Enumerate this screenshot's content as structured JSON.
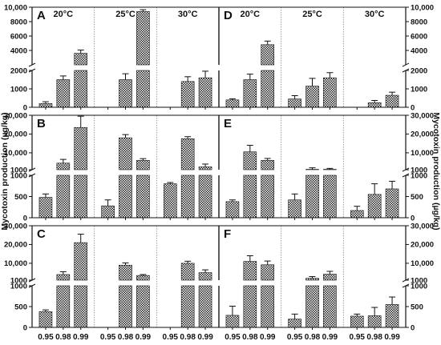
{
  "chart_data": {
    "type": "bar",
    "ylabel_left": "Mycotoxin production (µg/kg)",
    "ylabel_right": "Mycotoxin production (µg/kg)",
    "x_tick_labels": [
      "0.95",
      "0.98",
      "0.99",
      "0.95",
      "0.98",
      "0.99",
      "0.95",
      "0.98",
      "0.99"
    ],
    "temperatures": [
      "20°C",
      "25°C",
      "30°C"
    ],
    "panels": [
      {
        "label": "A",
        "row": 0,
        "col": 0,
        "show_temps": true,
        "lower": {
          "ylim": [
            0,
            2000
          ],
          "ticks": [
            "0",
            "1000",
            "2000"
          ]
        },
        "upper": {
          "ylim": [
            2000,
            10000
          ],
          "ticks": [
            "4000",
            "6000",
            "8000",
            "10,000"
          ]
        },
        "values": [
          200,
          1500,
          3600,
          null,
          1500,
          9400,
          null,
          1400,
          1600
        ],
        "errors": [
          100,
          200,
          450,
          null,
          320,
          250,
          null,
          260,
          360
        ]
      },
      {
        "label": "D",
        "row": 0,
        "col": 1,
        "show_temps": true,
        "lower": {
          "ylim": [
            0,
            2000
          ],
          "ticks": [
            "0",
            "1000",
            "2000"
          ]
        },
        "upper": {
          "ylim": [
            2000,
            10000
          ],
          "ticks": [
            "4000",
            "6000",
            "8000",
            "10,000"
          ]
        },
        "values": [
          400,
          1500,
          4800,
          450,
          1150,
          1600,
          null,
          250,
          650
        ],
        "errors": [
          60,
          300,
          500,
          180,
          420,
          280,
          null,
          120,
          170
        ]
      },
      {
        "label": "B",
        "row": 1,
        "col": 0,
        "show_temps": false,
        "lower": {
          "ylim": [
            0,
            1000
          ],
          "ticks": [
            "0",
            "500",
            "1000"
          ]
        },
        "upper": {
          "ylim": [
            1000,
            30000
          ],
          "ticks": [
            "1000",
            "10,000",
            "20,000",
            "30,000"
          ]
        },
        "values": [
          480,
          4500,
          23500,
          280,
          18000,
          6000,
          800,
          17500,
          2500
        ],
        "errors": [
          80,
          2000,
          6000,
          140,
          1700,
          900,
          30,
          1100,
          1500
        ]
      },
      {
        "label": "E",
        "row": 1,
        "col": 1,
        "show_temps": false,
        "lower": {
          "ylim": [
            0,
            1000
          ],
          "ticks": [
            "0",
            "500",
            "1000"
          ]
        },
        "upper": {
          "ylim": [
            1000,
            30000
          ],
          "ticks": [
            "1000",
            "10,000",
            "20,000",
            "30,000"
          ]
        },
        "values": [
          380,
          10500,
          6000,
          420,
          1200,
          1200,
          170,
          550,
          680
        ],
        "errors": [
          40,
          3500,
          1000,
          140,
          800,
          500,
          100,
          250,
          180
        ]
      },
      {
        "label": "C",
        "row": 2,
        "col": 0,
        "show_temps": false,
        "lower": {
          "ylim": [
            0,
            1000
          ],
          "ticks": [
            "0",
            "500",
            "1000"
          ]
        },
        "upper": {
          "ylim": [
            1000,
            30000
          ],
          "ticks": [
            "1000",
            "10,000",
            "20,000",
            "30,000"
          ]
        },
        "values": [
          380,
          4000,
          21000,
          null,
          9000,
          3500,
          null,
          10000,
          5000
        ],
        "errors": [
          40,
          1500,
          4500,
          null,
          1200,
          500,
          null,
          1100,
          1500
        ]
      },
      {
        "label": "F",
        "row": 2,
        "col": 1,
        "show_temps": false,
        "lower": {
          "ylim": [
            0,
            1000
          ],
          "ticks": [
            "0",
            "500",
            "1000"
          ]
        },
        "upper": {
          "ylim": [
            1000,
            30000
          ],
          "ticks": [
            "1000",
            "10,000",
            "20,000",
            "30,000"
          ]
        },
        "values": [
          290,
          11000,
          9200,
          200,
          2000,
          4200,
          270,
          280,
          550
        ],
        "errors": [
          220,
          3000,
          2000,
          120,
          900,
          1500,
          50,
          200,
          180
        ]
      }
    ]
  }
}
